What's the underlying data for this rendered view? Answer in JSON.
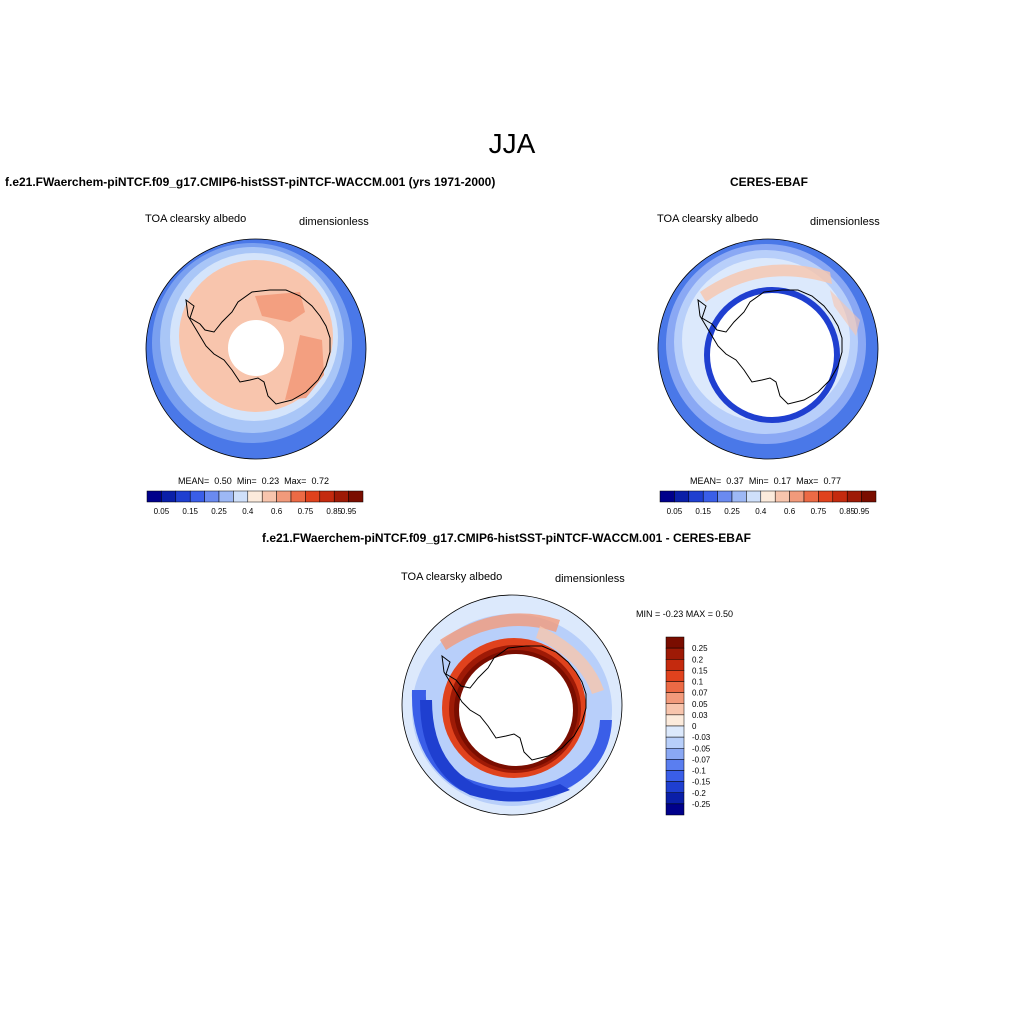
{
  "title": "JJA",
  "panels": {
    "model": {
      "title": "f.e21.FWaerchem-piNTCF.f09_g17.CMIP6-histSST-piNTCF-WACCM.001 (yrs 1971-2000)",
      "left_label": "TOA clearsky albedo",
      "right_label": "dimensionless",
      "stats": {
        "mean_label": "MEAN=",
        "mean": "0.50",
        "min_label": "Min=",
        "min": "0.23",
        "max_label": "Max=",
        "max": "0.72"
      }
    },
    "obs": {
      "title": "CERES-EBAF",
      "left_label": "TOA clearsky albedo",
      "right_label": "dimensionless",
      "stats": {
        "mean_label": "MEAN=",
        "mean": "0.37",
        "min_label": "Min=",
        "min": "0.17",
        "max_label": "Max=",
        "max": "0.77"
      }
    },
    "diff": {
      "title": "f.e21.FWaerchem-piNTCF.f09_g17.CMIP6-histSST-piNTCF-WACCM.001 - CERES-EBAF",
      "left_label": "TOA clearsky albedo",
      "right_label": "dimensionless",
      "minmax": "MIN =  -0.23 MAX =  0.50"
    }
  },
  "colorbar_abs": {
    "colors": [
      "#00008b",
      "#0a1fa8",
      "#1f3fd0",
      "#3a5ee8",
      "#6a8af0",
      "#9db8f5",
      "#cfe0fa",
      "#fcebdc",
      "#f8c5ad",
      "#f29a7b",
      "#ec6a45",
      "#e0421d",
      "#c42a0e",
      "#9e1a06",
      "#7a0d00"
    ],
    "tick_labels": [
      "0.05",
      "0.15",
      "0.25",
      "0.4",
      "0.6",
      "0.75",
      "0.85",
      "0.95"
    ]
  },
  "colorbar_diff": {
    "colors": [
      "#00008b",
      "#0a1fa8",
      "#1f3fd0",
      "#3a5ee8",
      "#5a7ef0",
      "#8aa8f4",
      "#b8cffa",
      "#dce9fc",
      "#fcebdc",
      "#f8c5ad",
      "#f29a7b",
      "#ec6a45",
      "#e0421d",
      "#c42a0e",
      "#9e1a06",
      "#7a0d00"
    ],
    "tick_labels": [
      "0.25",
      "0.2",
      "0.15",
      "0.1",
      "0.07",
      "0.05",
      "0.03",
      "0",
      "-0.03",
      "-0.05",
      "-0.07",
      "-0.1",
      "-0.15",
      "-0.2",
      "-0.25"
    ]
  }
}
